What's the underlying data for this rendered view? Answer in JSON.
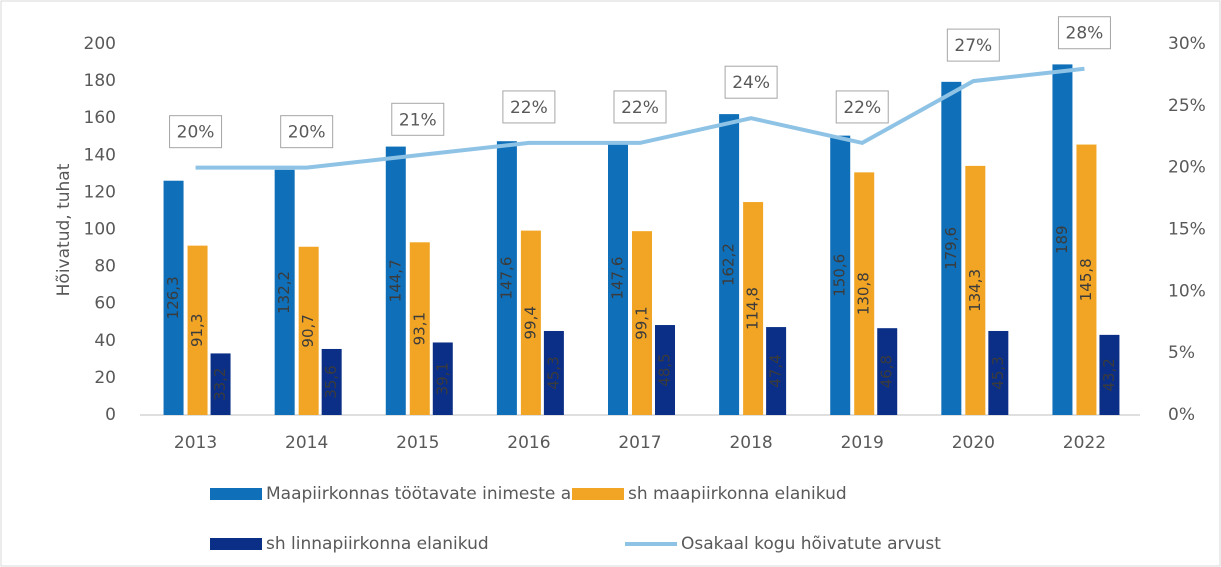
{
  "chart_data": {
    "type": "bar",
    "y_label": "Hõivatud, tuhat",
    "categories": [
      "2013",
      "2014",
      "2015",
      "2016",
      "2017",
      "2018",
      "2019",
      "2020",
      "2022"
    ],
    "series": [
      {
        "name": "Maapiirkonnas töötavate inimeste arv",
        "color": "#0f6fb8",
        "values": [
          126.3,
          132.2,
          144.7,
          147.6,
          147.6,
          162.2,
          150.6,
          179.6,
          189
        ],
        "value_labels": [
          "126,3",
          "132,2",
          "144,7",
          "147,6",
          "147,6",
          "162,2",
          "150,6",
          "179,6",
          "189"
        ]
      },
      {
        "name": "sh maapiirkonna elanikud",
        "color": "#f2a524",
        "values": [
          91.3,
          90.7,
          93.1,
          99.4,
          99.1,
          114.8,
          130.8,
          134.3,
          145.8
        ],
        "value_labels": [
          "91,3",
          "90,7",
          "93,1",
          "99,4",
          "99,1",
          "114,8",
          "130,8",
          "134,3",
          "145,8"
        ]
      },
      {
        "name": "sh linnapiirkonna elanikud",
        "color": "#0b2f86",
        "values": [
          33.2,
          35.6,
          39.1,
          45.3,
          48.5,
          47.4,
          46.8,
          45.3,
          43.2
        ],
        "value_labels": [
          "33,2",
          "35,6",
          "39,1",
          "45,3",
          "48,5",
          "47,4",
          "46,8",
          "45,3",
          "43,2"
        ]
      },
      {
        "name": "Osakaal kogu hõivatute arvust",
        "color": "#8ec3e6",
        "type": "line",
        "axis": "y2",
        "values": [
          20,
          20,
          21,
          22,
          22,
          24,
          22,
          27,
          28
        ],
        "value_labels": [
          "20%",
          "20%",
          "21%",
          "22%",
          "22%",
          "24%",
          "22%",
          "27%",
          "28%"
        ]
      }
    ],
    "ylim": [
      0,
      200
    ],
    "yticks": [
      0,
      20,
      40,
      60,
      80,
      100,
      120,
      140,
      160,
      180,
      200
    ],
    "y2lim": [
      0,
      30
    ],
    "y2ticks": [
      {
        "value": 0,
        "label": "0%"
      },
      {
        "value": 5,
        "label": "5%"
      },
      {
        "value": 10,
        "label": "10%"
      },
      {
        "value": 15,
        "label": "15%"
      },
      {
        "value": 20,
        "label": "20%"
      },
      {
        "value": 25,
        "label": "25%"
      },
      {
        "value": 30,
        "label": "30%"
      }
    ],
    "grid": false
  }
}
